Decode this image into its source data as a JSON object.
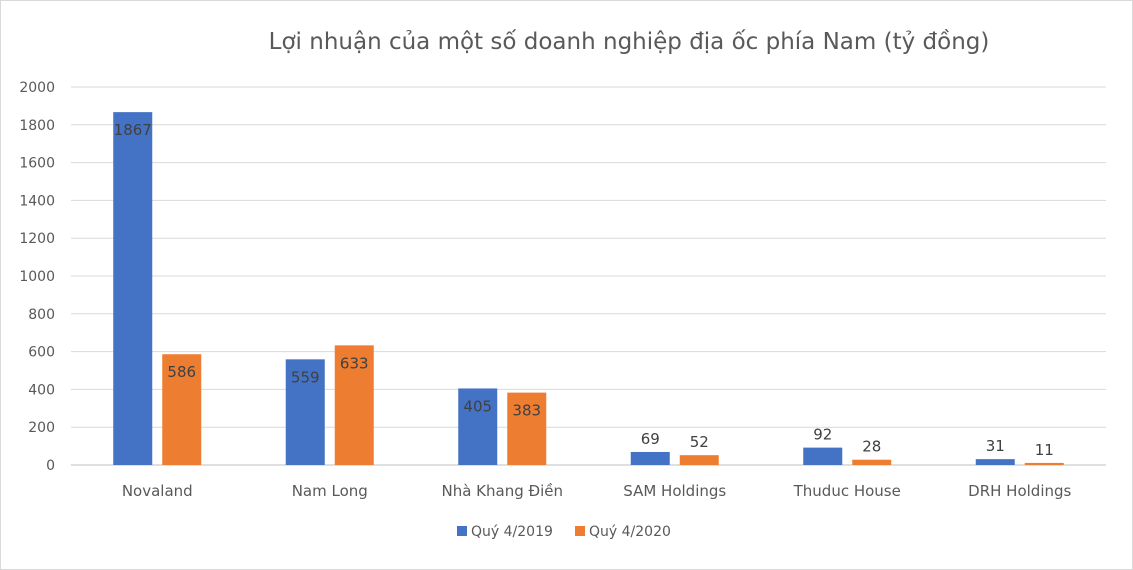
{
  "chart_data": {
    "type": "bar",
    "title": "Lợi nhuận của một số doanh nghiệp địa ốc phía Nam (tỷ đồng)",
    "xlabel": "",
    "ylabel": "",
    "ylim": [
      0,
      2000
    ],
    "yticks": [
      0,
      200,
      400,
      600,
      800,
      1000,
      1200,
      1400,
      1600,
      1800,
      2000
    ],
    "grid": true,
    "legend_position": "bottom",
    "categories": [
      "Novaland",
      "Nam Long",
      "Nhà Khang Điền",
      "SAM Holdings",
      "Thuduc House",
      "DRH Holdings"
    ],
    "series": [
      {
        "name": "Quý 4/2019",
        "color": "#4472c4",
        "values": [
          1867,
          559,
          405,
          69,
          92,
          31
        ]
      },
      {
        "name": "Quý 4/2020",
        "color": "#ed7d31",
        "values": [
          586,
          633,
          383,
          52,
          28,
          11
        ]
      }
    ]
  }
}
